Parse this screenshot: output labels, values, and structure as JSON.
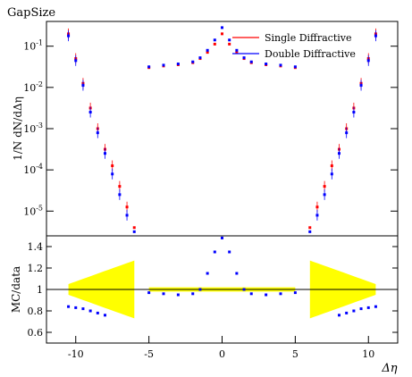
{
  "chart_data": [
    {
      "panel": "main",
      "type": "scatter",
      "title": "GapSize",
      "ylabel": "1/N dN/dΔη",
      "xlim": [
        -12,
        12
      ],
      "ylim_log10": [
        -5.6,
        -0.4
      ],
      "yscale": "log",
      "yticks": [
        {
          "label": "10^{-1}",
          "exp": -1
        },
        {
          "label": "10^{-2}",
          "exp": -2
        },
        {
          "label": "10^{-3}",
          "exp": -3
        },
        {
          "label": "10^{-4}",
          "exp": -4
        },
        {
          "label": "10^{-5}",
          "exp": -5
        }
      ],
      "legend": {
        "placement": "top-right"
      },
      "series": [
        {
          "name": "Single Diffractive",
          "color": "#ff0000",
          "edge_x": [
            -10.5,
            -10.0,
            -9.5,
            -9.0,
            -8.5,
            -8.0,
            -7.5,
            -7.0,
            -6.5,
            -6.0
          ],
          "edge_log10_y": [
            -0.7,
            -1.3,
            -1.9,
            -2.5,
            -3.0,
            -3.5,
            -3.9,
            -4.4,
            -4.9,
            -5.4
          ],
          "center_x": [
            -5.0,
            -4.0,
            -3.0,
            -2.0,
            -1.5,
            -1.0,
            -0.5,
            0.0,
            0.5,
            1.0,
            1.5,
            2.0,
            3.0,
            4.0,
            5.0
          ],
          "center_log10_y": [
            -1.52,
            -1.48,
            -1.45,
            -1.4,
            -1.3,
            -1.15,
            -0.95,
            -0.7,
            -0.95,
            -1.15,
            -1.3,
            -1.4,
            -1.45,
            -1.48,
            -1.52
          ]
        },
        {
          "name": "Double Diffractive",
          "color": "#0000ff",
          "edge_x": [
            -10.5,
            -10.0,
            -9.5,
            -9.0,
            -8.5,
            -8.0,
            -7.5,
            -7.0,
            -6.5,
            -6.0
          ],
          "edge_log10_y": [
            -0.75,
            -1.35,
            -1.95,
            -2.6,
            -3.1,
            -3.6,
            -4.1,
            -4.6,
            -5.1,
            -5.5
          ],
          "center_x": [
            -5.0,
            -4.0,
            -3.0,
            -2.0,
            -1.5,
            -1.0,
            -0.5,
            0.0,
            0.5,
            1.0,
            1.5,
            2.0,
            3.0,
            4.0,
            5.0
          ],
          "center_log10_y": [
            -1.5,
            -1.46,
            -1.43,
            -1.38,
            -1.28,
            -1.1,
            -0.85,
            -0.55,
            -0.85,
            -1.1,
            -1.28,
            -1.38,
            -1.43,
            -1.46,
            -1.5
          ]
        }
      ],
      "xlabel": ""
    },
    {
      "panel": "ratio",
      "type": "scatter",
      "ylabel": "MC/data",
      "xlabel": "Δη",
      "xlim": [
        -12,
        12
      ],
      "ylim": [
        0.5,
        1.5
      ],
      "yticks": [
        "0.6",
        "0.8",
        "1",
        "1.2",
        "1.4"
      ],
      "xticks": [
        "-10",
        "-5",
        "0",
        "5",
        "10"
      ],
      "band_color": "#ffff00",
      "series": [
        {
          "name": "Double Diffractive",
          "color": "#0000ff",
          "x": [
            -10.5,
            -10.0,
            -9.5,
            -9.0,
            -8.5,
            -8.0,
            -5.0,
            -4.0,
            -3.0,
            -2.0,
            -1.5,
            -1.0,
            -0.5,
            0.0,
            0.5,
            1.0,
            1.5,
            2.0,
            3.0,
            4.0,
            5.0,
            8.0,
            8.5,
            9.0,
            9.5,
            10.0,
            10.5
          ],
          "y": [
            0.84,
            0.83,
            0.82,
            0.8,
            0.78,
            0.76,
            0.97,
            0.96,
            0.95,
            0.96,
            1.0,
            1.15,
            1.35,
            1.48,
            1.35,
            1.15,
            1.0,
            0.96,
            0.95,
            0.96,
            0.97,
            0.76,
            0.78,
            0.8,
            0.82,
            0.83,
            0.84
          ]
        }
      ]
    }
  ]
}
